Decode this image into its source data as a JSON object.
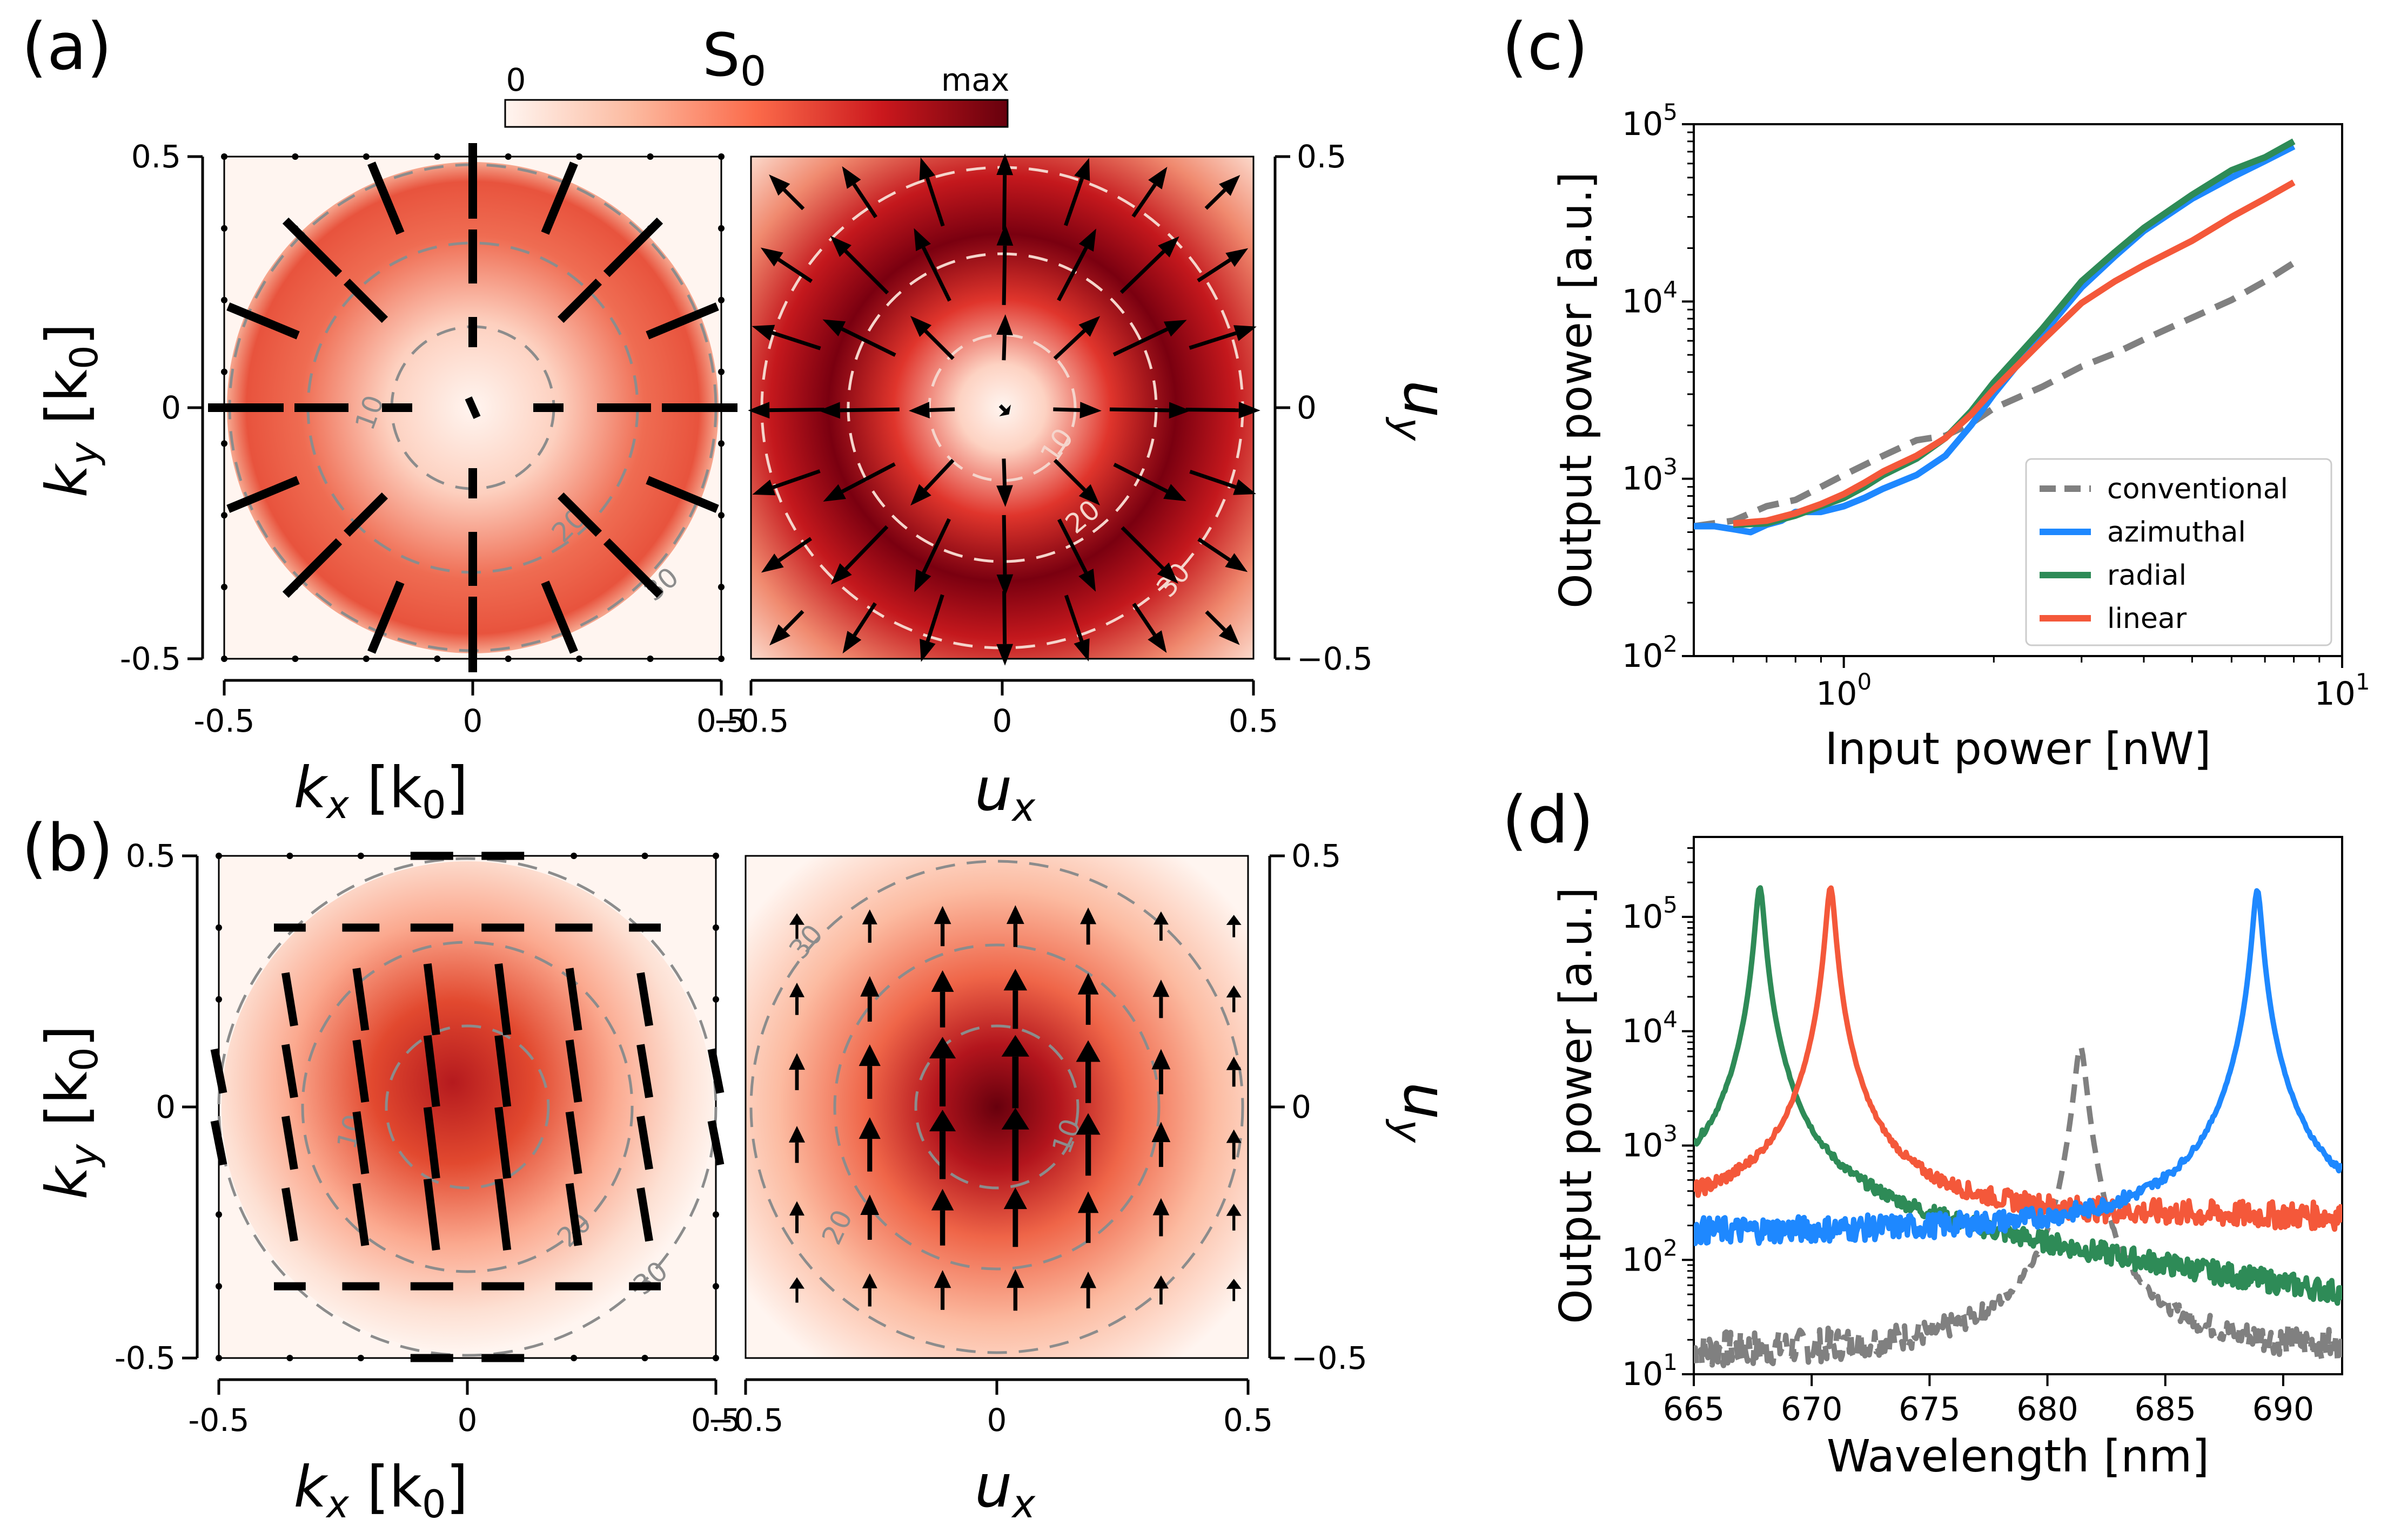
{
  "panel_labels": {
    "a": "(a)",
    "b": "(b)",
    "c": "(c)",
    "d": "(d)"
  },
  "colorbar": {
    "title": "S",
    "title_sub": "0",
    "min_label": "0",
    "max_label": "max"
  },
  "kspace_axes": {
    "ticks": [
      {
        "value": -0.5,
        "label": "-0.5"
      },
      {
        "value": 0,
        "label": "0"
      },
      {
        "value": 0.5,
        "label": "0.5"
      }
    ],
    "xlabel_main": "k",
    "xlabel_sub": "x",
    "ylabel_main": "k",
    "ylabel_sub": "y",
    "unit_main": "[k",
    "unit_sub": "0",
    "unit_close": "]"
  },
  "uspace_axes": {
    "ticks": [
      {
        "value": -0.5,
        "label": "−0.5"
      },
      {
        "value": 0,
        "label": "0"
      },
      {
        "value": 0.5,
        "label": "0.5"
      }
    ],
    "xlabel_main": "u",
    "xlabel_sub": "x",
    "ylabel_main": "u",
    "ylabel_sub": "y"
  },
  "contour_labels": {
    "a_left": [
      "10",
      "20",
      "30"
    ],
    "a_right": [
      "10",
      "20",
      "30"
    ],
    "b_left": [
      "10",
      "20",
      "30"
    ],
    "b_right": [
      "30",
      "10",
      "20"
    ]
  },
  "chart_data": [
    {
      "id": "c",
      "type": "line",
      "xscale": "log",
      "yscale": "log",
      "xlim": [
        0.5,
        10
      ],
      "ylim": [
        100,
        100000
      ],
      "xlabel": "Input power [nW]",
      "ylabel": "Output power [a.u.]",
      "xticks": [
        {
          "value": 1,
          "base": "10",
          "exp": "0"
        },
        {
          "value": 10,
          "base": "10",
          "exp": "1"
        }
      ],
      "yticks": [
        {
          "value": 100,
          "base": "10",
          "exp": "2"
        },
        {
          "value": 1000,
          "base": "10",
          "exp": "3"
        },
        {
          "value": 10000,
          "base": "10",
          "exp": "4"
        },
        {
          "value": 100000,
          "base": "10",
          "exp": "5"
        }
      ],
      "legend_position": "lower-right",
      "series": [
        {
          "name": "conventional",
          "color": "#808080",
          "dash": true,
          "x": [
            0.5,
            0.6,
            0.7,
            0.8,
            0.9,
            1.0,
            1.2,
            1.4,
            1.6,
            1.8,
            2.0,
            2.5,
            3.0,
            3.5,
            4.0,
            5.0,
            6.0,
            7.0,
            8.0
          ],
          "y": [
            540,
            580,
            700,
            760,
            900,
            1050,
            1350,
            1650,
            1750,
            2050,
            2500,
            3300,
            4300,
            5100,
            6100,
            8100,
            10200,
            13000,
            16500
          ]
        },
        {
          "name": "azimuthal",
          "color": "#1e88ff",
          "dash": false,
          "x": [
            0.5,
            0.55,
            0.6,
            0.65,
            0.7,
            0.75,
            0.8,
            0.9,
            1.0,
            1.1,
            1.2,
            1.4,
            1.6,
            1.8,
            2.0,
            2.5,
            3.0,
            3.5,
            4.0,
            5.0,
            6.0,
            7.0,
            8.0
          ],
          "y": [
            540,
            540,
            520,
            500,
            550,
            580,
            650,
            650,
            700,
            780,
            880,
            1050,
            1350,
            2000,
            3000,
            6500,
            12000,
            18000,
            25000,
            38000,
            50000,
            62000,
            75000
          ]
        },
        {
          "name": "radial",
          "color": "#2e8b57",
          "dash": false,
          "x": [
            0.6,
            0.7,
            0.8,
            0.9,
            1.0,
            1.1,
            1.2,
            1.4,
            1.6,
            1.8,
            2.0,
            2.5,
            3.0,
            3.5,
            4.0,
            5.0,
            6.0,
            7.0,
            8.0
          ],
          "y": [
            550,
            560,
            620,
            700,
            780,
            900,
            1050,
            1300,
            1700,
            2400,
            3500,
            7000,
            13000,
            19000,
            26000,
            40000,
            55000,
            65000,
            80000
          ]
        },
        {
          "name": "linear",
          "color": "#f4583a",
          "dash": false,
          "x": [
            0.6,
            0.7,
            0.8,
            0.9,
            1.0,
            1.1,
            1.2,
            1.4,
            1.6,
            1.8,
            2.0,
            2.5,
            3.0,
            3.5,
            4.0,
            5.0,
            6.0,
            7.0,
            8.0
          ],
          "y": [
            560,
            580,
            640,
            720,
            820,
            950,
            1100,
            1350,
            1700,
            2300,
            3200,
            6000,
            9800,
            13000,
            16000,
            22000,
            30000,
            38000,
            47000
          ]
        }
      ]
    },
    {
      "id": "d",
      "type": "line",
      "yscale": "log",
      "xlim": [
        665,
        692.5
      ],
      "ylim": [
        10,
        500000
      ],
      "xlabel": "Wavelength [nm]",
      "ylabel": "Output power  [a.u.]",
      "xticks": [
        {
          "value": 665,
          "label": "665"
        },
        {
          "value": 670,
          "label": "670"
        },
        {
          "value": 675,
          "label": "675"
        },
        {
          "value": 680,
          "label": "680"
        },
        {
          "value": 685,
          "label": "685"
        },
        {
          "value": 690,
          "label": "690"
        }
      ],
      "yticks": [
        {
          "value": 10,
          "base": "10",
          "exp": "1"
        },
        {
          "value": 100,
          "base": "10",
          "exp": "2"
        },
        {
          "value": 1000,
          "base": "10",
          "exp": "3"
        },
        {
          "value": 10000,
          "base": "10",
          "exp": "4"
        },
        {
          "value": 100000,
          "base": "10",
          "exp": "5"
        }
      ],
      "series": [
        {
          "name": "conventional",
          "color": "#808080",
          "dash": true,
          "peak": 681.4,
          "peak_value": 7000,
          "width": 0.22,
          "baseline": 15,
          "noise": 0.35
        },
        {
          "name": "radial",
          "color": "#2e8b57",
          "dash": false,
          "peak": 667.8,
          "peak_value": 180000,
          "width": 0.18,
          "baseline": 300,
          "noise": 0.25,
          "shoulder": 1200
        },
        {
          "name": "linear",
          "color": "#f4583a",
          "dash": false,
          "peak": 670.8,
          "peak_value": 180000,
          "width": 0.18,
          "baseline": 230,
          "noise": 0.25,
          "shoulder": 700
        },
        {
          "name": "azimuthal",
          "color": "#1e88ff",
          "dash": false,
          "peak": 688.9,
          "peak_value": 170000,
          "width": 0.18,
          "baseline": 170,
          "noise": 0.25,
          "shoulder": 900
        }
      ]
    }
  ]
}
